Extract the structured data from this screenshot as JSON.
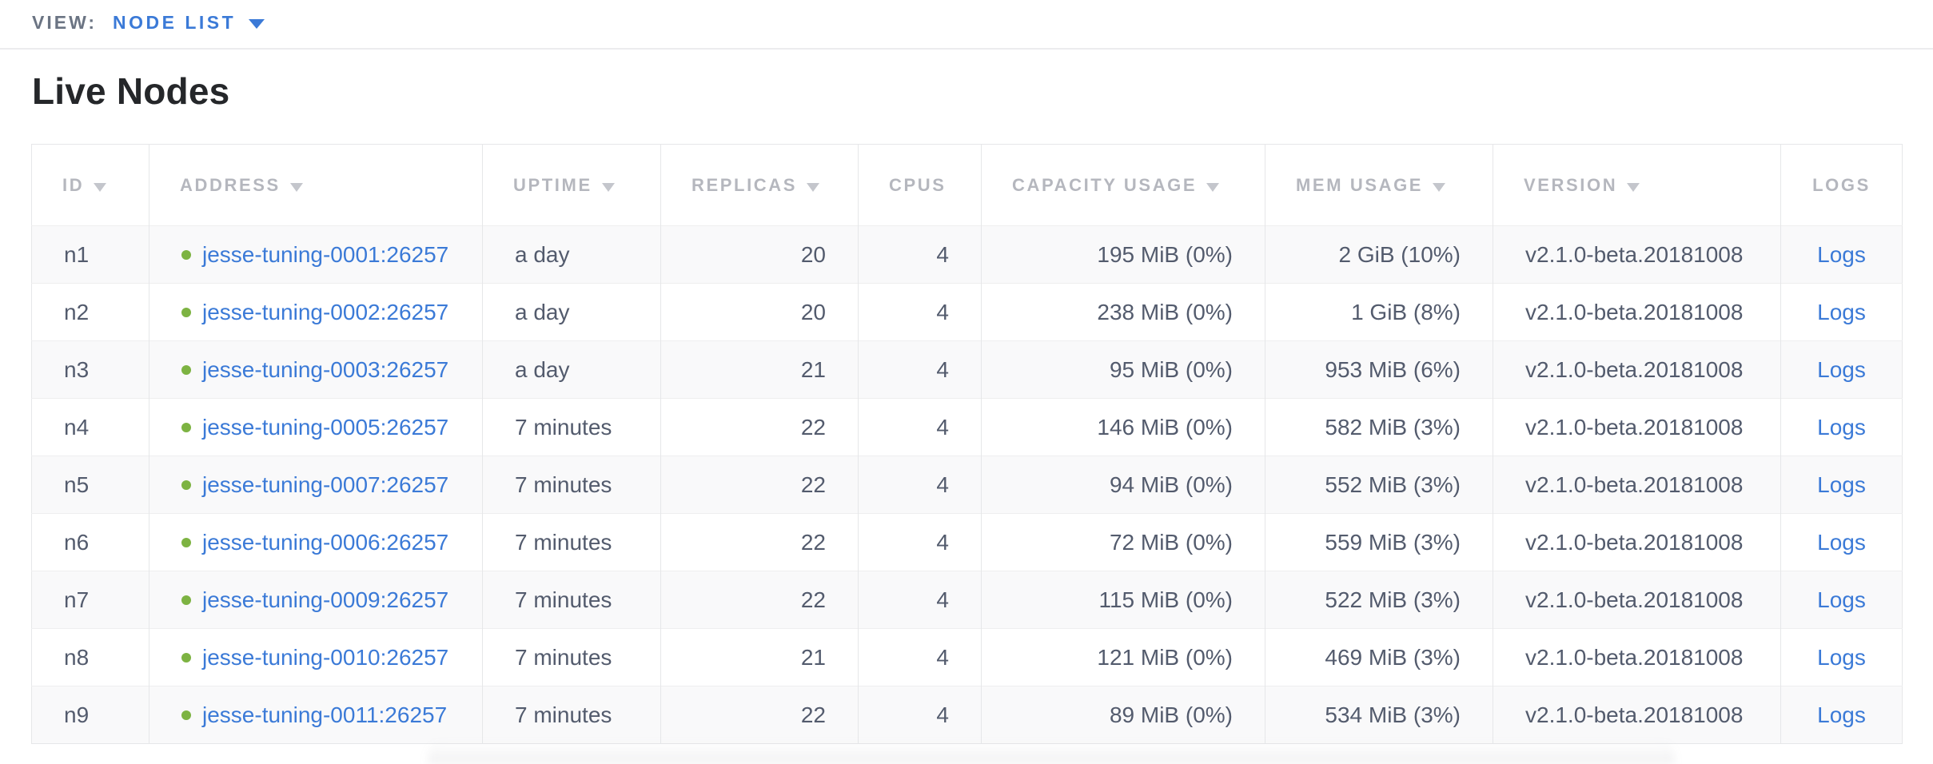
{
  "view_bar": {
    "label": "VIEW:",
    "selected_view": "NODE LIST"
  },
  "page_title": "Live Nodes",
  "colors": {
    "link": "#3b7ad7",
    "live_dot": "#7db342",
    "header_text": "#b5b7be"
  },
  "node_table": {
    "columns": [
      {
        "key": "id",
        "label": "ID",
        "sortable": true
      },
      {
        "key": "address",
        "label": "ADDRESS",
        "sortable": true
      },
      {
        "key": "uptime",
        "label": "UPTIME",
        "sortable": true
      },
      {
        "key": "replicas",
        "label": "REPLICAS",
        "sortable": true
      },
      {
        "key": "cpus",
        "label": "CPUS",
        "sortable": false
      },
      {
        "key": "capacity",
        "label": "CAPACITY USAGE",
        "sortable": true
      },
      {
        "key": "mem",
        "label": "MEM USAGE",
        "sortable": true
      },
      {
        "key": "version",
        "label": "VERSION",
        "sortable": true
      },
      {
        "key": "logs",
        "label": "LOGS",
        "sortable": false
      }
    ],
    "rows": [
      {
        "id": "n1",
        "status": "live",
        "address": "jesse-tuning-0001:26257",
        "uptime": "a day",
        "replicas": "20",
        "cpus": "4",
        "capacity": "195 MiB (0%)",
        "mem": "2 GiB (10%)",
        "version": "v2.1.0-beta.20181008",
        "logs": "Logs"
      },
      {
        "id": "n2",
        "status": "live",
        "address": "jesse-tuning-0002:26257",
        "uptime": "a day",
        "replicas": "20",
        "cpus": "4",
        "capacity": "238 MiB (0%)",
        "mem": "1 GiB (8%)",
        "version": "v2.1.0-beta.20181008",
        "logs": "Logs"
      },
      {
        "id": "n3",
        "status": "live",
        "address": "jesse-tuning-0003:26257",
        "uptime": "a day",
        "replicas": "21",
        "cpus": "4",
        "capacity": "95 MiB (0%)",
        "mem": "953 MiB (6%)",
        "version": "v2.1.0-beta.20181008",
        "logs": "Logs"
      },
      {
        "id": "n4",
        "status": "live",
        "address": "jesse-tuning-0005:26257",
        "uptime": "7 minutes",
        "replicas": "22",
        "cpus": "4",
        "capacity": "146 MiB (0%)",
        "mem": "582 MiB (3%)",
        "version": "v2.1.0-beta.20181008",
        "logs": "Logs"
      },
      {
        "id": "n5",
        "status": "live",
        "address": "jesse-tuning-0007:26257",
        "uptime": "7 minutes",
        "replicas": "22",
        "cpus": "4",
        "capacity": "94 MiB (0%)",
        "mem": "552 MiB (3%)",
        "version": "v2.1.0-beta.20181008",
        "logs": "Logs"
      },
      {
        "id": "n6",
        "status": "live",
        "address": "jesse-tuning-0006:26257",
        "uptime": "7 minutes",
        "replicas": "22",
        "cpus": "4",
        "capacity": "72 MiB (0%)",
        "mem": "559 MiB (3%)",
        "version": "v2.1.0-beta.20181008",
        "logs": "Logs"
      },
      {
        "id": "n7",
        "status": "live",
        "address": "jesse-tuning-0009:26257",
        "uptime": "7 minutes",
        "replicas": "22",
        "cpus": "4",
        "capacity": "115 MiB (0%)",
        "mem": "522 MiB (3%)",
        "version": "v2.1.0-beta.20181008",
        "logs": "Logs"
      },
      {
        "id": "n8",
        "status": "live",
        "address": "jesse-tuning-0010:26257",
        "uptime": "7 minutes",
        "replicas": "21",
        "cpus": "4",
        "capacity": "121 MiB (0%)",
        "mem": "469 MiB (3%)",
        "version": "v2.1.0-beta.20181008",
        "logs": "Logs"
      },
      {
        "id": "n9",
        "status": "live",
        "address": "jesse-tuning-0011:26257",
        "uptime": "7 minutes",
        "replicas": "22",
        "cpus": "4",
        "capacity": "89 MiB (0%)",
        "mem": "534 MiB (3%)",
        "version": "v2.1.0-beta.20181008",
        "logs": "Logs"
      }
    ]
  }
}
